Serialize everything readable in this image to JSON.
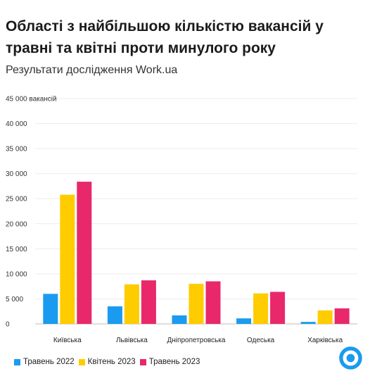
{
  "chart_data": {
    "type": "bar",
    "title": "Області з найбільшою кількістю вакансій у травні та квітні проти минулого року",
    "subtitle": "Результати дослідження Work.ua",
    "ylabel_unit": "вакансій",
    "categories": [
      "Київська",
      "Львівська",
      "Дніпропетровська",
      "Одеська",
      "Харківська"
    ],
    "series": [
      {
        "name": "Травень 2022",
        "color": "#1a9bf0",
        "values": [
          6000,
          3500,
          1700,
          1100,
          400
        ]
      },
      {
        "name": "Квітень 2023",
        "color": "#ffcc00",
        "values": [
          25800,
          7900,
          8000,
          6100,
          2700
        ]
      },
      {
        "name": "Травень 2023",
        "color": "#e8286a",
        "values": [
          28400,
          8700,
          8500,
          6400,
          3100
        ]
      }
    ],
    "ylim": [
      0,
      45000
    ],
    "yticks": [
      "0",
      "5 000",
      "10 000",
      "15 000",
      "20 000",
      "25 000",
      "30 000",
      "35 000",
      "40 000",
      "45 000"
    ],
    "ytick_values": [
      0,
      5000,
      10000,
      15000,
      20000,
      25000,
      30000,
      35000,
      40000,
      45000
    ],
    "grid": true,
    "legend_position": "bottom-left"
  },
  "logo": {
    "name": "workua-logo-icon",
    "ring_color": "#1a9bf0"
  }
}
